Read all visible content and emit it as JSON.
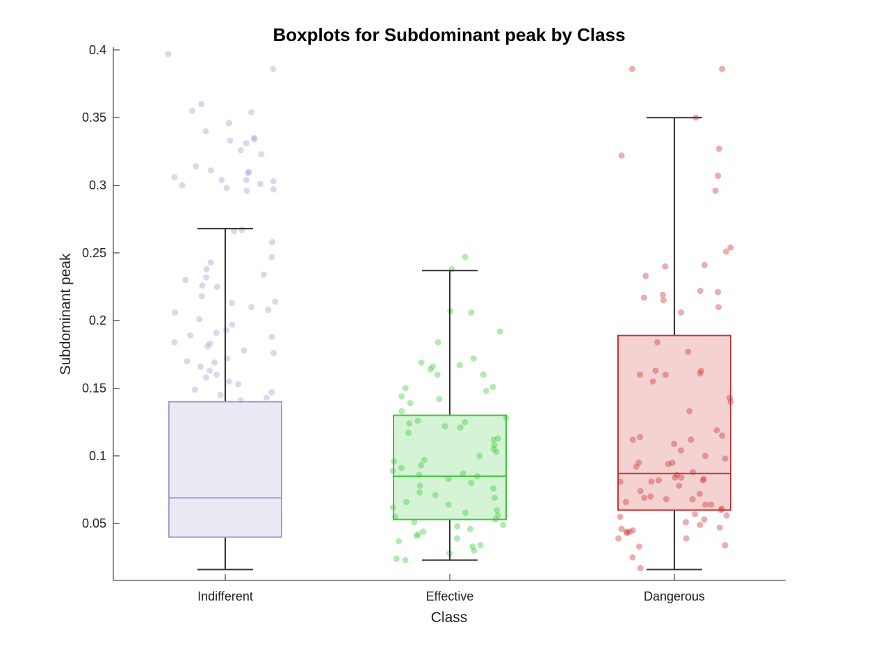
{
  "chart_data": {
    "type": "boxplot",
    "title": "Boxplots for Subdominant peak by Class",
    "xlabel": "Class",
    "ylabel": "Subdominant peak",
    "ylim": [
      0.008,
      0.402
    ],
    "yticks": [
      0.05,
      0.1,
      0.15,
      0.2,
      0.25,
      0.3,
      0.35,
      0.4
    ],
    "ytick_labels": [
      "0.05",
      "0.1",
      "0.15",
      "0.2",
      "0.25",
      "0.3",
      "0.35",
      "0.4"
    ],
    "categories": [
      "Indifferent",
      "Effective",
      "Dangerous"
    ],
    "grid": false,
    "legend": "none",
    "boxes": [
      {
        "category": "Indifferent",
        "whisker_low": 0.016,
        "q1": 0.04,
        "median": 0.069,
        "q3": 0.14,
        "whisker_high": 0.268,
        "color": "#9f9fd2"
      },
      {
        "category": "Effective",
        "whisker_low": 0.023,
        "q1": 0.053,
        "median": 0.085,
        "q3": 0.13,
        "whisker_high": 0.237,
        "color": "#3ec83e"
      },
      {
        "category": "Dangerous",
        "whisker_low": 0.016,
        "q1": 0.06,
        "median": 0.087,
        "q3": 0.189,
        "whisker_high": 0.35,
        "color": "#cc3333"
      }
    ],
    "points": [
      {
        "category": "Indifferent",
        "values": [
          0.397,
          0.386,
          0.36,
          0.355,
          0.354,
          0.346,
          0.34,
          0.335,
          0.334,
          0.333,
          0.331,
          0.326,
          0.323,
          0.314,
          0.311,
          0.31,
          0.309,
          0.306,
          0.304,
          0.304,
          0.303,
          0.301,
          0.3,
          0.298,
          0.297,
          0.296,
          0.267,
          0.266,
          0.258,
          0.247,
          0.243,
          0.238,
          0.234,
          0.232,
          0.23,
          0.226,
          0.225,
          0.218,
          0.214,
          0.213,
          0.21,
          0.208,
          0.206,
          0.201,
          0.197,
          0.193,
          0.191,
          0.189,
          0.188,
          0.184,
          0.183,
          0.181,
          0.178,
          0.176,
          0.172,
          0.17,
          0.169,
          0.166,
          0.163,
          0.16,
          0.158,
          0.155,
          0.153,
          0.149,
          0.147,
          0.145,
          0.143,
          0.141
        ]
      },
      {
        "category": "Effective",
        "values": [
          0.247,
          0.238,
          0.207,
          0.206,
          0.192,
          0.184,
          0.172,
          0.169,
          0.167,
          0.166,
          0.164,
          0.16,
          0.16,
          0.151,
          0.15,
          0.148,
          0.144,
          0.142,
          0.139,
          0.133,
          0.128,
          0.126,
          0.125,
          0.124,
          0.122,
          0.121,
          0.117,
          0.113,
          0.112,
          0.108,
          0.105,
          0.103,
          0.1,
          0.097,
          0.096,
          0.093,
          0.091,
          0.089,
          0.087,
          0.086,
          0.085,
          0.083,
          0.08,
          0.078,
          0.076,
          0.073,
          0.071,
          0.069,
          0.066,
          0.064,
          0.062,
          0.06,
          0.058,
          0.056,
          0.055,
          0.053,
          0.051,
          0.049,
          0.048,
          0.046,
          0.044,
          0.042,
          0.041,
          0.039,
          0.037,
          0.034,
          0.033,
          0.03,
          0.028,
          0.024,
          0.023
        ]
      },
      {
        "category": "Dangerous",
        "values": [
          0.386,
          0.386,
          0.35,
          0.327,
          0.322,
          0.307,
          0.296,
          0.254,
          0.251,
          0.241,
          0.24,
          0.233,
          0.222,
          0.221,
          0.219,
          0.217,
          0.215,
          0.21,
          0.206,
          0.184,
          0.177,
          0.163,
          0.163,
          0.161,
          0.16,
          0.16,
          0.155,
          0.143,
          0.14,
          0.133,
          0.119,
          0.115,
          0.114,
          0.112,
          0.112,
          0.109,
          0.104,
          0.1,
          0.098,
          0.095,
          0.095,
          0.094,
          0.092,
          0.088,
          0.086,
          0.084,
          0.084,
          0.083,
          0.082,
          0.082,
          0.081,
          0.081,
          0.078,
          0.074,
          0.072,
          0.07,
          0.069,
          0.068,
          0.068,
          0.066,
          0.064,
          0.064,
          0.061,
          0.06,
          0.057,
          0.056,
          0.055,
          0.053,
          0.051,
          0.049,
          0.047,
          0.046,
          0.045,
          0.044,
          0.044,
          0.043,
          0.039,
          0.039,
          0.034,
          0.033,
          0.025,
          0.017
        ]
      }
    ]
  }
}
